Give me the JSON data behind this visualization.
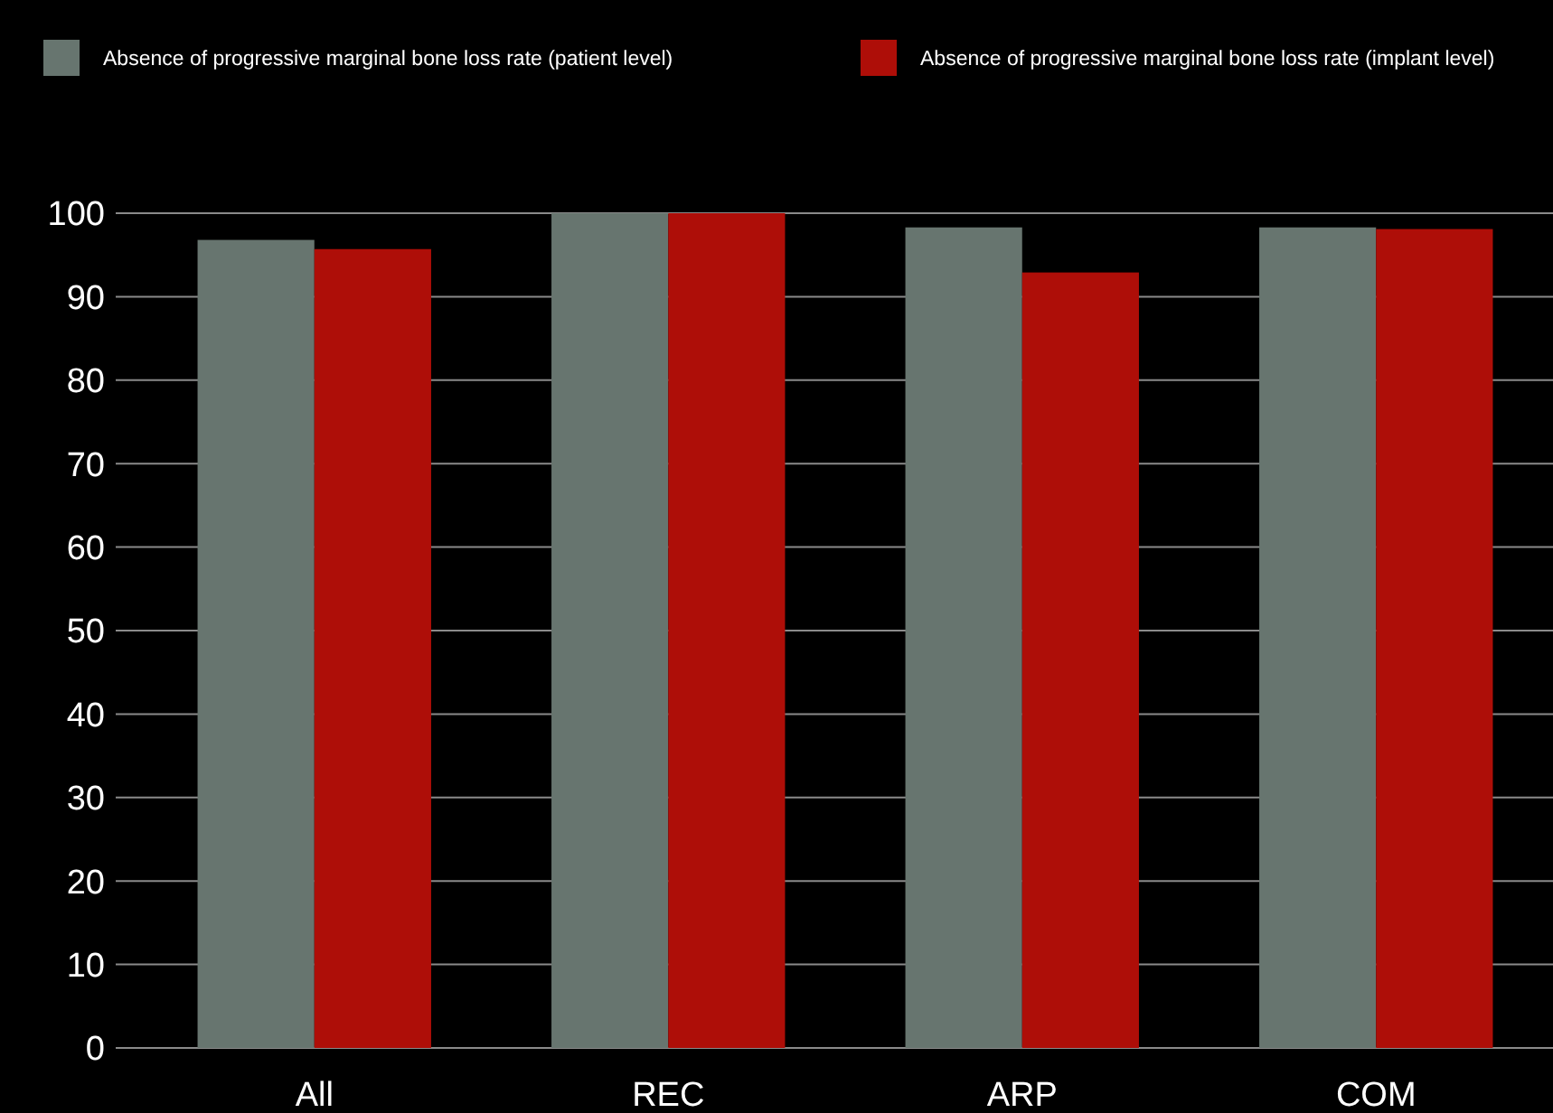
{
  "chart_data": {
    "type": "bar",
    "categories": [
      "All",
      "REC",
      "ARP",
      "COM"
    ],
    "series": [
      {
        "name": "Absence of progressive marginal bone loss rate (patient level)",
        "color": "#67756f",
        "values": [
          96.8,
          100,
          98.3,
          98.3
        ]
      },
      {
        "name": "Absence of progressive marginal bone loss rate (implant level)",
        "color": "#ae0e08",
        "values": [
          95.7,
          100,
          92.9,
          98.1
        ]
      }
    ],
    "ylim": [
      0,
      100
    ],
    "yticks": [
      0,
      10,
      20,
      30,
      40,
      50,
      60,
      70,
      80,
      90,
      100
    ],
    "grid": "y",
    "legend": "top"
  }
}
